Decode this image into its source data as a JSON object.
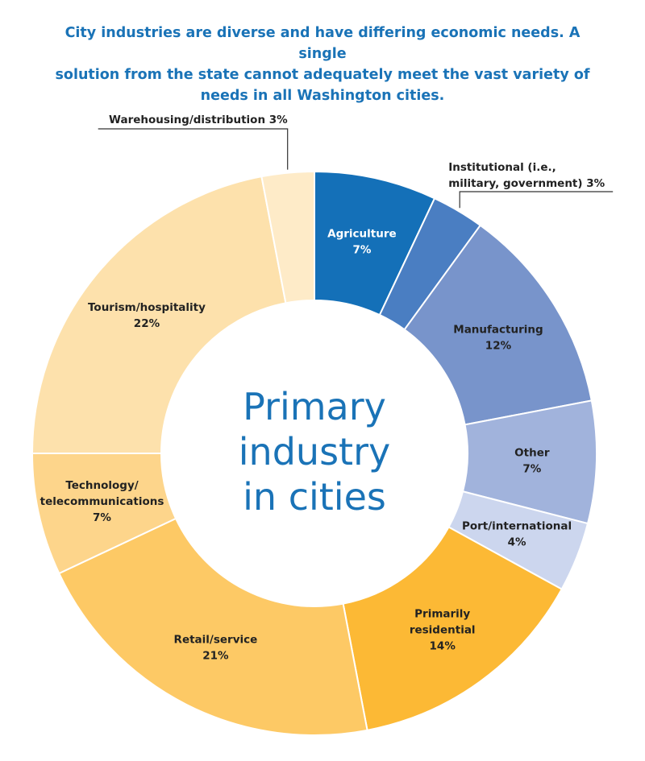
{
  "chart_data": {
    "type": "donut",
    "title": "City industries are diverse and have differing economic needs. A single solution from the state cannot adequately meet the vast variety of needs in all Washington cities.",
    "center_text": [
      "Primary",
      "industry",
      "in cities"
    ],
    "slices": [
      {
        "name": "Agriculture",
        "lines": [
          "Agriculture"
        ],
        "value": 7,
        "label": "7%",
        "color": "#1470b8",
        "light": true
      },
      {
        "name": "Institutional (i.e., military, government)",
        "lines": [
          "Institutional (i.e.,",
          "military, government) 3%"
        ],
        "value": 3,
        "label": "",
        "color": "#4a7ec2",
        "callout": true
      },
      {
        "name": "Manufacturing",
        "lines": [
          "Manufacturing"
        ],
        "value": 12,
        "label": "12%",
        "color": "#7894cb"
      },
      {
        "name": "Other",
        "lines": [
          "Other"
        ],
        "value": 7,
        "label": "7%",
        "color": "#a1b3dc"
      },
      {
        "name": "Port/international",
        "lines": [
          "Port/international"
        ],
        "value": 4,
        "label": "4%",
        "color": "#ccd6ee"
      },
      {
        "name": "Primarily residential",
        "lines": [
          "Primarily",
          "residential"
        ],
        "value": 14,
        "label": "14%",
        "color": "#fcb935"
      },
      {
        "name": "Retail/service",
        "lines": [
          "Retail/service"
        ],
        "value": 21,
        "label": "21%",
        "color": "#fdc965"
      },
      {
        "name": "Technology/ telecommunications",
        "lines": [
          "Technology/",
          "telecommunications"
        ],
        "value": 7,
        "label": "7%",
        "color": "#fdd58b"
      },
      {
        "name": "Tourism/hospitality",
        "lines": [
          "Tourism/hospitality"
        ],
        "value": 22,
        "label": "22%",
        "color": "#fde1ac"
      },
      {
        "name": "Warehousing/distribution",
        "lines": [
          "Warehousing/distribution  3%"
        ],
        "value": 3,
        "label": "",
        "color": "#feebc8",
        "callout": true
      }
    ]
  }
}
